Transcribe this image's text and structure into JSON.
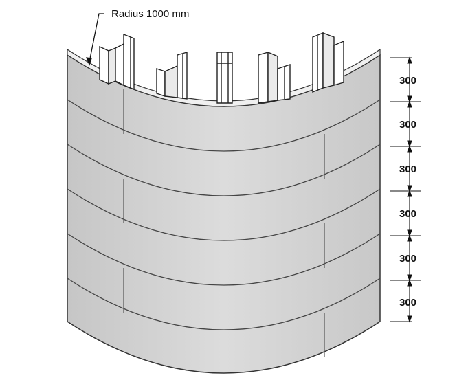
{
  "callout": {
    "radius_label": "Radius 1000 mm"
  },
  "dimensions": {
    "values": [
      "300",
      "300",
      "300",
      "300",
      "300",
      "300"
    ]
  },
  "colors": {
    "frame": "#2aa7d8",
    "panel": "#d4d4d4",
    "outline": "#333333"
  }
}
